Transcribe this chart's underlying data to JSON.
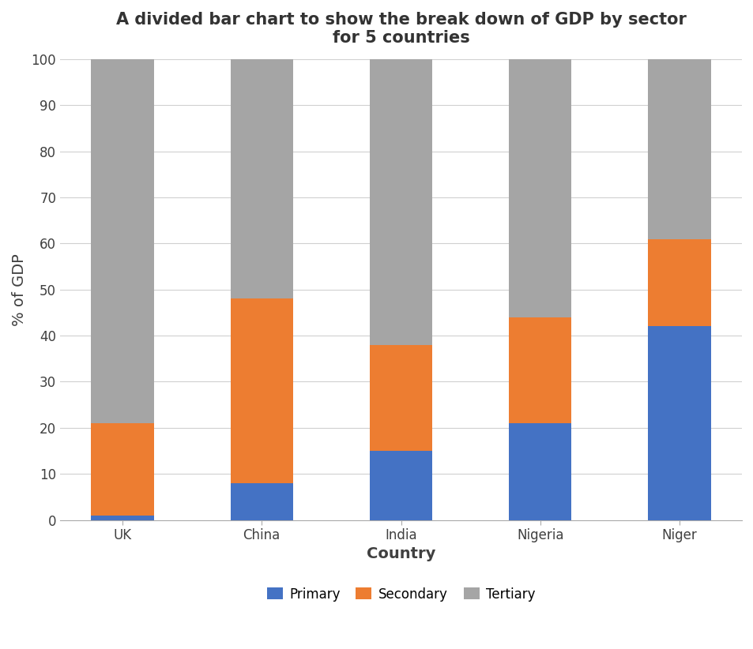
{
  "countries": [
    "UK",
    "China",
    "India",
    "Nigeria",
    "Niger"
  ],
  "primary": [
    1,
    8,
    15,
    21,
    42
  ],
  "secondary": [
    20,
    40,
    23,
    23,
    19
  ],
  "tertiary": [
    79,
    52,
    62,
    56,
    39
  ],
  "colors": {
    "primary": "#4472C4",
    "secondary": "#ED7D31",
    "tertiary": "#A5A5A5"
  },
  "title": "A divided bar chart to show the break down of GDP by sector\nfor 5 countries",
  "xlabel": "Country",
  "ylabel": "% of GDP",
  "ylim": [
    0,
    100
  ],
  "yticks": [
    0,
    10,
    20,
    30,
    40,
    50,
    60,
    70,
    80,
    90,
    100
  ],
  "legend_labels": [
    "Primary",
    "Secondary",
    "Tertiary"
  ],
  "title_fontsize": 15,
  "axis_label_fontsize": 14,
  "tick_fontsize": 12,
  "legend_fontsize": 12,
  "background_color": "#FFFFFF",
  "bar_width": 0.45
}
